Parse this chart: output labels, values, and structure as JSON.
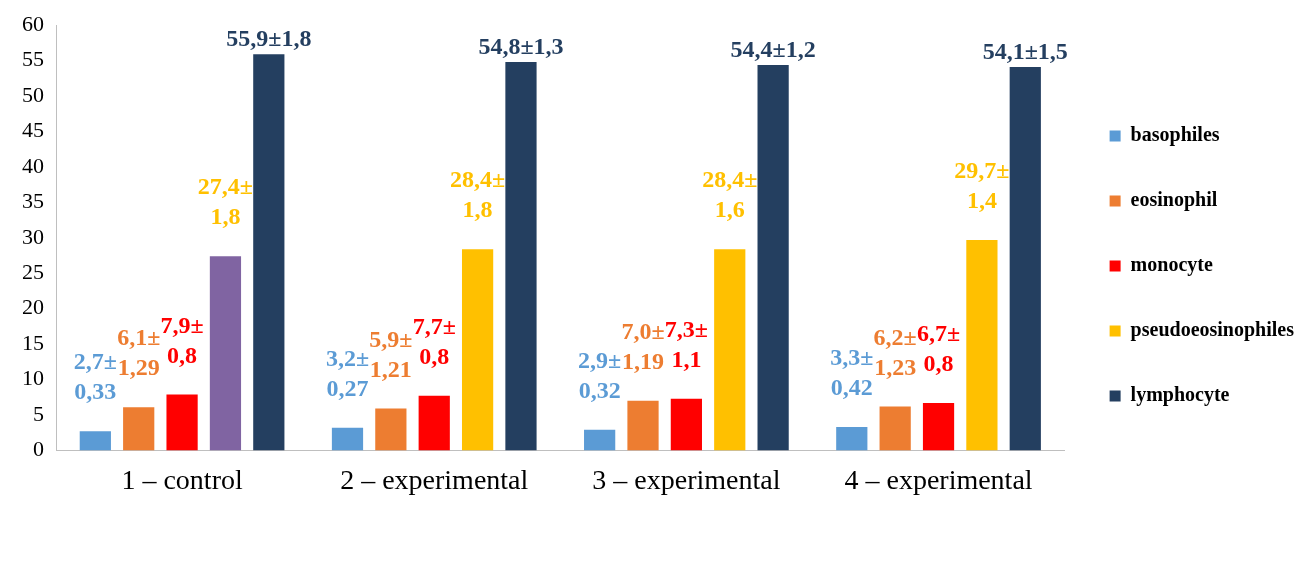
{
  "chart_data": {
    "type": "bar",
    "categories": [
      "1 – control",
      "2 – experimental",
      "3 – experimental",
      "4 – experimental"
    ],
    "ylim": [
      0,
      60
    ],
    "yticks": [
      0,
      5,
      10,
      15,
      20,
      25,
      30,
      35,
      40,
      45,
      50,
      55,
      60
    ],
    "grid": false,
    "legend": "right",
    "series": [
      {
        "name": "basophiles",
        "color": "#5b9bd5",
        "values": [
          2.7,
          3.2,
          2.9,
          3.3
        ],
        "value_labels": [
          "2,7±\n0,33",
          "3,2±\n0,27",
          "2,9±\n0,32",
          "3,3±\n0,42"
        ]
      },
      {
        "name": "eosinophil",
        "color": "#ed7d31",
        "values": [
          6.1,
          5.9,
          7.0,
          6.2
        ],
        "value_labels": [
          "6,1±\n1,29",
          "5,9±\n1,21",
          "7,0±\n1,19",
          "6,2±\n1,23"
        ]
      },
      {
        "name": "monocyte",
        "color": "#ff0000",
        "values": [
          7.9,
          7.7,
          7.3,
          6.7
        ],
        "value_labels": [
          "7,9±\n0,8",
          "7,7±\n0,8",
          "7,3±\n1,1",
          "6,7±\n0,8"
        ]
      },
      {
        "name": "pseudoeosinophiles",
        "color": "#ffc000",
        "colors": [
          "#8064a2",
          "#ffc000",
          "#ffc000",
          "#ffc000"
        ],
        "values": [
          27.4,
          28.4,
          28.4,
          29.7
        ],
        "value_labels": [
          "27,4±\n1,8",
          "28,4±\n1,8",
          "28,4±\n1,6",
          "29,7±\n1,4"
        ]
      },
      {
        "name": "lymphocyte",
        "color": "#243f60",
        "values": [
          55.9,
          54.8,
          54.4,
          54.1
        ],
        "value_labels": [
          "55,9±1,8",
          "54,8±1,3",
          "54,4±1,2",
          "54,1±1,5"
        ]
      }
    ]
  }
}
